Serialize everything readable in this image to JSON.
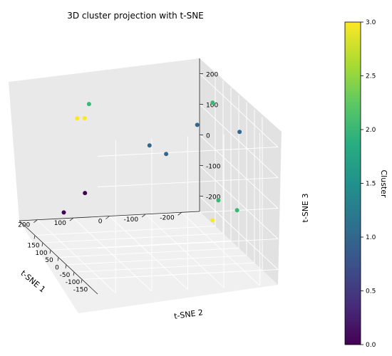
{
  "chart_data": {
    "type": "scatter3d",
    "title": "3D cluster projection with t-SNE",
    "xlabel": "t-SNE 1",
    "ylabel": "t-SNE 2",
    "zlabel": "t-SNE 3",
    "x_ticks": [
      200,
      100,
      0,
      -100,
      -200
    ],
    "y_ticks": [
      150,
      100,
      50,
      0,
      -50,
      -100,
      -150
    ],
    "z_ticks": [
      200,
      100,
      0,
      -100,
      -200
    ],
    "colorbar": {
      "label": "Cluster",
      "min": 0.0,
      "max": 3.0,
      "ticks": [
        "0.0",
        "0.5",
        "1.0",
        "1.5",
        "2.0",
        "2.5",
        "3.0"
      ],
      "colormap": "viridis"
    },
    "points": [
      {
        "x": 160,
        "y": 40,
        "z": 180,
        "cluster": 3
      },
      {
        "x": 100,
        "y": 150,
        "z": 170,
        "cluster": 2
      },
      {
        "x": 120,
        "y": 180,
        "z": 110,
        "cluster": 3
      },
      {
        "x": -160,
        "y": -40,
        "z": 250,
        "cluster": 2
      },
      {
        "x": -100,
        "y": -80,
        "z": 200,
        "cluster": 1
      },
      {
        "x": -200,
        "y": -120,
        "z": 190,
        "cluster": 1
      },
      {
        "x": -20,
        "y": 40,
        "z": 80,
        "cluster": 1
      },
      {
        "x": -40,
        "y": -20,
        "z": 80,
        "cluster": 1
      },
      {
        "x": 120,
        "y": 130,
        "z": -110,
        "cluster": 0
      },
      {
        "x": 170,
        "y": 150,
        "z": -180,
        "cluster": 0
      },
      {
        "x": -150,
        "y": -100,
        "z": -40,
        "cluster": 2
      },
      {
        "x": -180,
        "y": -150,
        "z": -50,
        "cluster": 2
      },
      {
        "x": -190,
        "y": 30,
        "z": -170,
        "cluster": 3
      }
    ]
  }
}
